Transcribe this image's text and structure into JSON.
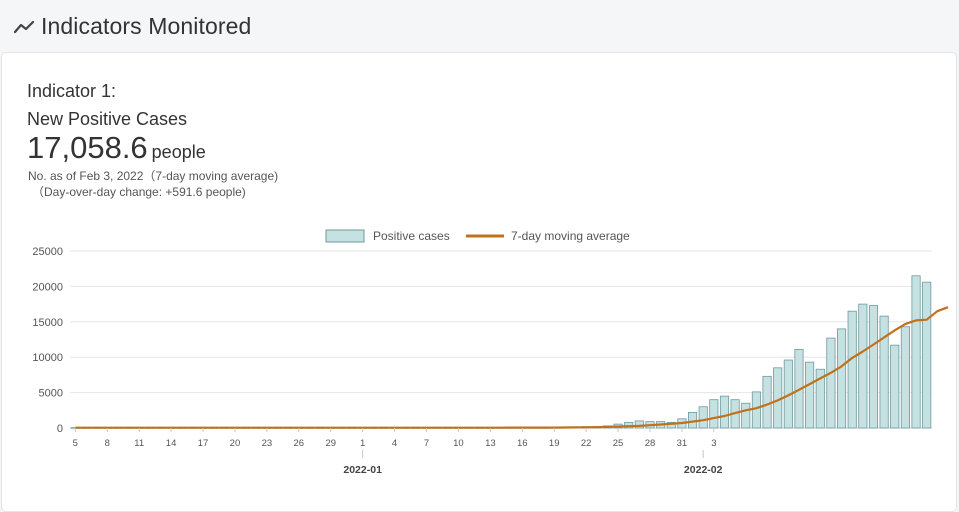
{
  "header": {
    "title": "Indicators Monitored",
    "icon": "trend-line-icon"
  },
  "indicator": {
    "label": "Indicator 1:",
    "name": "New Positive Cases",
    "value": "17,058.6",
    "unit": "people",
    "as_of": "No. as of Feb 3, 2022（7-day moving average)",
    "change": "（Day-over-day change: +591.6 people)"
  },
  "colors": {
    "bar_fill": "#c5e1e2",
    "bar_stroke": "#6f9a9c",
    "line": "#c1711a",
    "grid": "#e6e6e6"
  },
  "chart_data": {
    "type": "bar",
    "legend": {
      "position": "top",
      "bar_label": "Positive cases",
      "line_label": "7-day moving average"
    },
    "x_tick_labels": [
      "5",
      "8",
      "11",
      "14",
      "17",
      "20",
      "23",
      "26",
      "29",
      "1",
      "4",
      "7",
      "10",
      "13",
      "16",
      "19",
      "22",
      "25",
      "28",
      "31",
      "3"
    ],
    "x_major_labels": [
      "2022-01",
      "2022-02"
    ],
    "y_ticks": [
      "0",
      "5000",
      "10000",
      "15000",
      "20000",
      "25000"
    ],
    "ylim": [
      0,
      25000
    ],
    "grid": true,
    "start_date": "2021-12-05",
    "series": [
      {
        "name": "Positive cases",
        "type": "bar",
        "values": [
          40,
          40,
          40,
          40,
          40,
          40,
          40,
          40,
          40,
          40,
          40,
          40,
          40,
          40,
          40,
          40,
          40,
          40,
          40,
          40,
          40,
          40,
          40,
          40,
          40,
          40,
          40,
          40,
          40,
          40,
          40,
          40,
          40,
          40,
          40,
          40,
          40,
          40,
          40,
          40,
          50,
          60,
          60,
          60,
          60,
          80,
          100,
          150,
          200,
          200,
          300,
          550,
          800,
          1000,
          900,
          900,
          800,
          1300,
          2200,
          3000,
          4000,
          4500,
          4000,
          3500,
          5100,
          7300,
          8500,
          9600,
          11100,
          9300,
          8300,
          12700,
          14000,
          16500,
          17500,
          17300,
          15800,
          11700,
          14300,
          21500,
          20600
        ]
      },
      {
        "name": "7-day moving average",
        "type": "line",
        "values": [
          40,
          40,
          40,
          40,
          40,
          40,
          40,
          40,
          40,
          40,
          40,
          40,
          40,
          40,
          40,
          40,
          40,
          40,
          40,
          40,
          40,
          40,
          40,
          40,
          40,
          40,
          40,
          40,
          40,
          40,
          40,
          40,
          40,
          40,
          40,
          40,
          40,
          40,
          40,
          40,
          45,
          50,
          50,
          55,
          55,
          60,
          70,
          80,
          100,
          120,
          150,
          200,
          250,
          300,
          400,
          500,
          600,
          700,
          900,
          1100,
          1400,
          1700,
          2100,
          2500,
          2800,
          3300,
          3900,
          4600,
          5400,
          6200,
          7000,
          7800,
          8700,
          9900,
          10800,
          11800,
          12800,
          13800,
          14700,
          15200,
          15300,
          16500,
          17058.6
        ]
      }
    ]
  }
}
